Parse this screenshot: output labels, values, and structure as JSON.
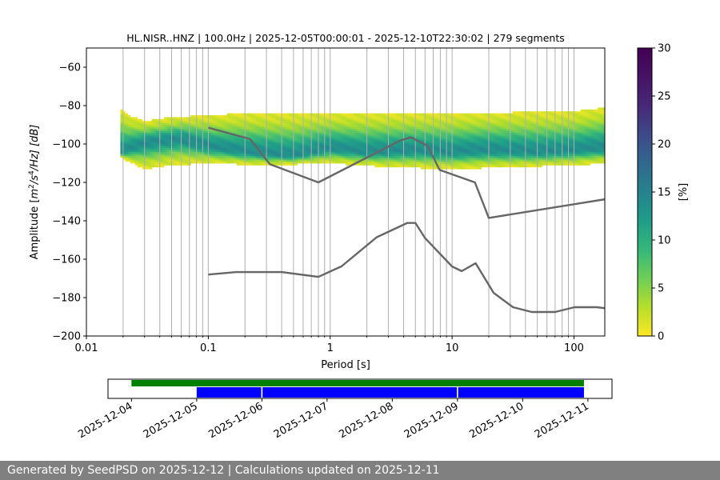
{
  "chart_data": [
    {
      "type": "heatmap",
      "title": "HL.NISR..HNZ | 100.0Hz | 2025-12-05T00:00:01 - 2025-12-10T22:30:02 | 279 segments",
      "xlabel": "Period [s]",
      "ylabel_prefix": "Amplitude [",
      "ylabel_sup1": "2",
      "ylabel_mid": "/s",
      "ylabel_sup2": "4",
      "ylabel_suffix": "/Hz] [dB]",
      "x_scale": "log",
      "xlim": [
        0.01,
        179
      ],
      "ylim": [
        -200,
        -50
      ],
      "x_ticks": [
        {
          "value": 0.01,
          "label": "0.01"
        },
        {
          "value": 0.1,
          "label": "0.1"
        },
        {
          "value": 1,
          "label": "1"
        },
        {
          "value": 10,
          "label": "10"
        },
        {
          "value": 100,
          "label": "100"
        }
      ],
      "y_ticks": [
        {
          "value": -60,
          "label": "−60"
        },
        {
          "value": -80,
          "label": "−80"
        },
        {
          "value": -100,
          "label": "−100"
        },
        {
          "value": -120,
          "label": "−120"
        },
        {
          "value": -140,
          "label": "−140"
        },
        {
          "value": -160,
          "label": "−160"
        },
        {
          "value": -180,
          "label": "−180"
        },
        {
          "value": -200,
          "label": "−200"
        }
      ],
      "grid": true,
      "colormap": "viridis",
      "colorbar": {
        "label": "[%]",
        "range": [
          0,
          30
        ],
        "ticks": [
          {
            "value": 0,
            "label": "0"
          },
          {
            "value": 5,
            "label": "5"
          },
          {
            "value": 10,
            "label": "10"
          },
          {
            "value": 15,
            "label": "15"
          },
          {
            "value": 20,
            "label": "20"
          },
          {
            "value": 25,
            "label": "25"
          },
          {
            "value": 30,
            "label": "30"
          }
        ]
      },
      "psd_band": {
        "period_range": [
          0.019,
          179
        ],
        "mode": [
          {
            "x": 0.02,
            "y": -104
          },
          {
            "x": 0.03,
            "y": -99
          },
          {
            "x": 0.04,
            "y": -98
          },
          {
            "x": 0.06,
            "y": -97
          },
          {
            "x": 0.1,
            "y": -101
          },
          {
            "x": 0.2,
            "y": -104
          },
          {
            "x": 0.5,
            "y": -106
          },
          {
            "x": 1,
            "y": -102
          },
          {
            "x": 2,
            "y": -104
          },
          {
            "x": 5,
            "y": -103
          },
          {
            "x": 10,
            "y": -104
          },
          {
            "x": 20,
            "y": -103
          },
          {
            "x": 50,
            "y": -104
          },
          {
            "x": 100,
            "y": -103
          },
          {
            "x": 179,
            "y": -102
          }
        ],
        "upper": [
          {
            "x": 0.019,
            "y": -81
          },
          {
            "x": 0.022,
            "y": -85
          },
          {
            "x": 0.03,
            "y": -88
          },
          {
            "x": 0.05,
            "y": -86
          },
          {
            "x": 0.1,
            "y": -85
          },
          {
            "x": 0.2,
            "y": -84
          },
          {
            "x": 1,
            "y": -84
          },
          {
            "x": 10,
            "y": -84
          },
          {
            "x": 100,
            "y": -83
          },
          {
            "x": 179,
            "y": -81
          }
        ],
        "lower": [
          {
            "x": 0.019,
            "y": -107
          },
          {
            "x": 0.03,
            "y": -113
          },
          {
            "x": 0.05,
            "y": -111
          },
          {
            "x": 0.1,
            "y": -110
          },
          {
            "x": 0.3,
            "y": -111
          },
          {
            "x": 1,
            "y": -110
          },
          {
            "x": 3,
            "y": -112
          },
          {
            "x": 10,
            "y": -113
          },
          {
            "x": 30,
            "y": -112
          },
          {
            "x": 100,
            "y": -111
          },
          {
            "x": 179,
            "y": -110
          }
        ]
      },
      "series": [
        {
          "line": "high-noise-model",
          "color": "#666666",
          "points": [
            {
              "x": 0.1,
              "y": -91.5
            },
            {
              "x": 0.22,
              "y": -97.4
            },
            {
              "x": 0.32,
              "y": -110.5
            },
            {
              "x": 0.8,
              "y": -120
            },
            {
              "x": 3.8,
              "y": -98
            },
            {
              "x": 4.6,
              "y": -96.5
            },
            {
              "x": 6.3,
              "y": -101
            },
            {
              "x": 7.9,
              "y": -113.5
            },
            {
              "x": 15.4,
              "y": -120
            },
            {
              "x": 20,
              "y": -138.5
            },
            {
              "x": 179,
              "y": -128.8
            }
          ]
        },
        {
          "line": "low-noise-model",
          "color": "#666666",
          "points": [
            {
              "x": 0.1,
              "y": -168
            },
            {
              "x": 0.17,
              "y": -166.7
            },
            {
              "x": 0.4,
              "y": -166.7
            },
            {
              "x": 0.8,
              "y": -169.2
            },
            {
              "x": 1.24,
              "y": -163.7
            },
            {
              "x": 2.4,
              "y": -148.6
            },
            {
              "x": 4.3,
              "y": -141.1
            },
            {
              "x": 5,
              "y": -141.1
            },
            {
              "x": 6,
              "y": -149
            },
            {
              "x": 10,
              "y": -163.8
            },
            {
              "x": 12,
              "y": -166.2
            },
            {
              "x": 15.6,
              "y": -162.1
            },
            {
              "x": 21.9,
              "y": -177.5
            },
            {
              "x": 31.6,
              "y": -185
            },
            {
              "x": 45,
              "y": -187.5
            },
            {
              "x": 70,
              "y": -187.5
            },
            {
              "x": 101,
              "y": -185
            },
            {
              "x": 154,
              "y": -185
            },
            {
              "x": 179,
              "y": -185.5
            }
          ]
        }
      ]
    },
    {
      "type": "timeline",
      "x_ticks": [
        "2025-12-04",
        "2025-12-05",
        "2025-12-06",
        "2025-12-07",
        "2025-12-08",
        "2025-12-09",
        "2025-12-10",
        "2025-12-11"
      ],
      "xlim_days": [
        3.64,
        11.37
      ],
      "coverage": {
        "color": "#008000",
        "spans": [
          {
            "start": 4.0,
            "end": 10.94
          }
        ]
      },
      "segments": {
        "color": "#0000ff",
        "spans": [
          {
            "start": 5.0,
            "end": 5.99
          },
          {
            "start": 6.01,
            "end": 8.99
          },
          {
            "start": 9.01,
            "end": 10.94
          }
        ]
      }
    }
  ],
  "footer": {
    "text": "Generated by SeedPSD on 2025-12-12 | Calculations updated on 2025-12-11"
  }
}
